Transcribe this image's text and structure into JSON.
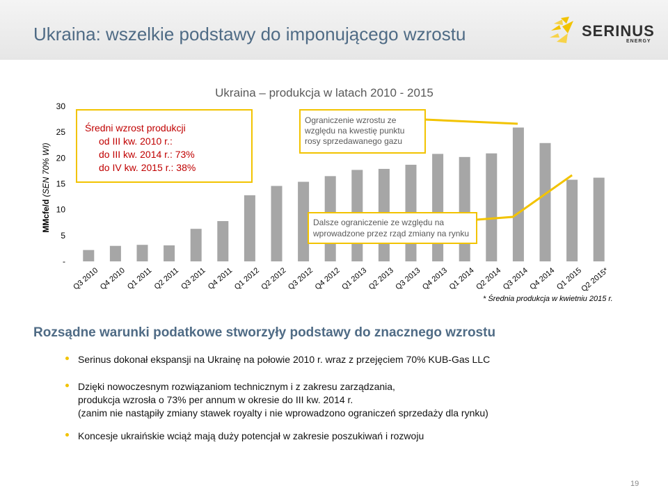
{
  "header": {
    "title": "Ukraina: wszelkie podstawy do imponującego wzrostu",
    "logo_text": "SERINUS",
    "logo_subtext": "ENERGY",
    "accent_color": "#f2c300",
    "title_color": "#4f6b85"
  },
  "chart_data": {
    "type": "bar",
    "title": "Ukraina – produkcja w latach 2010 - 2015",
    "ylabel": "MMcfe/d",
    "ylabel_note": "(SEN 70% WI)",
    "ylim": [
      0,
      30
    ],
    "yticks": [
      {
        "value": 0,
        "label": "-"
      },
      {
        "value": 5,
        "label": "5"
      },
      {
        "value": 10,
        "label": "10"
      },
      {
        "value": 15,
        "label": "15"
      },
      {
        "value": 20,
        "label": "20"
      },
      {
        "value": 25,
        "label": "25"
      },
      {
        "value": 30,
        "label": "30"
      }
    ],
    "categories": [
      "Q3 2010",
      "Q4 2010",
      "Q1 2011",
      "Q2 2011",
      "Q3 2011",
      "Q4 2011",
      "Q1 2012",
      "Q2 2012",
      "Q3 2012",
      "Q4 2012",
      "Q1 2013",
      "Q2 2013",
      "Q3 2013",
      "Q4 2013",
      "Q1 2014",
      "Q2 2014",
      "Q3 2014",
      "Q4 2014",
      "Q1 2015",
      "Q2 2015*"
    ],
    "values": [
      2.2,
      3.0,
      3.2,
      3.1,
      6.3,
      7.8,
      12.8,
      14.6,
      15.4,
      16.5,
      17.7,
      17.9,
      18.7,
      20.8,
      20.2,
      20.9,
      25.9,
      22.9,
      15.8,
      16.2
    ],
    "bar_color": "#a6a6a6",
    "trend_color": "#f2c300",
    "annotations": {
      "growth_box": {
        "heading": "Średni wzrost produkcji",
        "line2": "od III kw. 2010 r.:",
        "line3": "do III kw. 2014 r.:  73%",
        "line4": "do IV kw. 2015 r.:  38%"
      },
      "excise_box": {
        "line1": "Ograniczenie wzrostu ze",
        "line2": "względu na kwestię punktu",
        "line3": "rosy sprzedawanego gazu"
      },
      "gov_box": {
        "line1": "Dalsze ograniczenie ze względu na",
        "line2": "wprowadzone przez rząd zmiany na rynku"
      }
    }
  },
  "footnote": "*  Średnia produkcja w kwietniu 2015 r.",
  "subheading": "Rozsądne warunki podatkowe stworzyły podstawy do znacznego wzrostu",
  "bullets": [
    {
      "lines": [
        "Serinus dokonał ekspansji na Ukrainę na połowie 2010 r. wraz z przejęciem 70% KUB-Gas LLC"
      ]
    },
    {
      "lines": [
        "Dzięki nowoczesnym rozwiązaniom technicznym i z zakresu zarządzania,",
        "produkcja wzrosła o 73% per annum w okresie do III kw. 2014 r.",
        "(zanim nie nastąpiły zmiany stawek royalty i nie wprowadzono ograniczeń sprzedaży dla rynku)"
      ]
    },
    {
      "lines": [
        "Koncesje ukraińskie wciąż mają duży potencjał w zakresie poszukiwań i rozwoju"
      ]
    }
  ],
  "page_number": "19"
}
